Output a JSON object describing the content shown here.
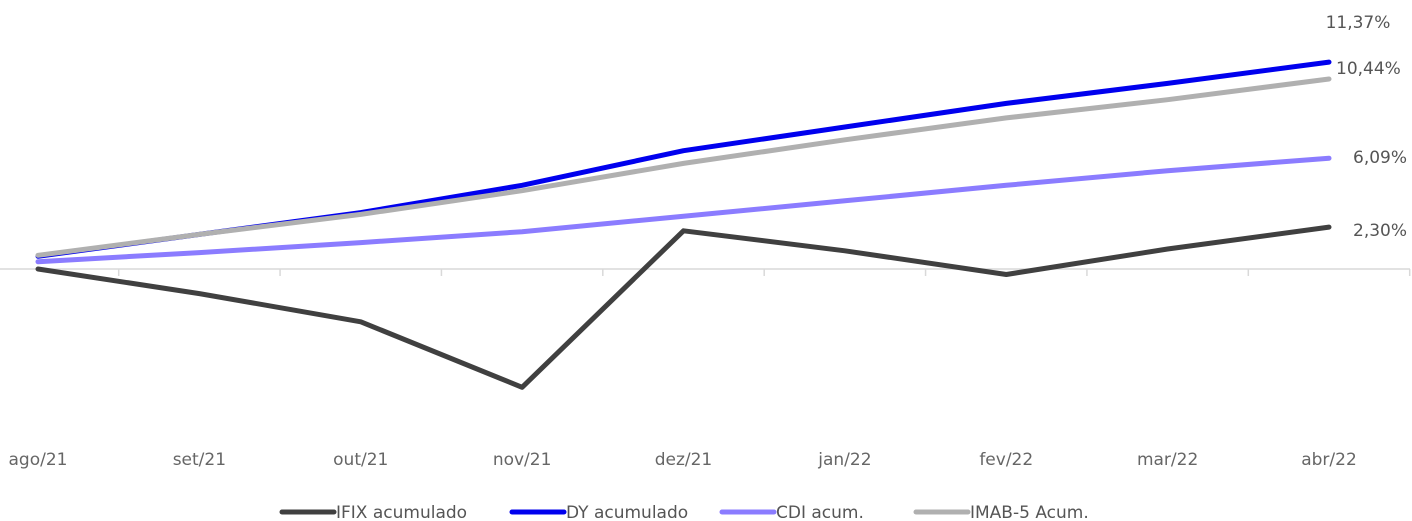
{
  "chart_data": {
    "type": "line",
    "categories": [
      "ago/21",
      "set/21",
      "out/21",
      "nov/21",
      "dez/21",
      "jan/22",
      "fev/22",
      "mar/22",
      "abr/22"
    ],
    "ylim": [
      -6.5,
      12.5
    ],
    "grid": false,
    "legend_position": "bottom",
    "series": [
      {
        "name": "IFIX acumulado",
        "color": "#404040",
        "values": [
          0.0,
          -1.35,
          -2.9,
          -6.5,
          2.1,
          1.0,
          -0.3,
          1.1,
          2.3
        ],
        "end_label": "2,30%"
      },
      {
        "name": "DY acumulado",
        "color": "#0000ee",
        "values": [
          0.7,
          1.9,
          3.1,
          4.6,
          6.5,
          7.8,
          9.1,
          10.2,
          11.37
        ],
        "end_label": "11,37%"
      },
      {
        "name": "CDI acum.",
        "color": "#8b7cff",
        "values": [
          0.4,
          0.9,
          1.45,
          2.05,
          2.9,
          3.75,
          4.6,
          5.4,
          6.09
        ],
        "end_label": "6,09%"
      },
      {
        "name": "IMAB-5 Acum.",
        "color": "#b0b0b0",
        "values": [
          0.75,
          1.9,
          3.0,
          4.3,
          5.8,
          7.1,
          8.3,
          9.3,
          10.44
        ],
        "end_label": "10,44%"
      }
    ]
  }
}
